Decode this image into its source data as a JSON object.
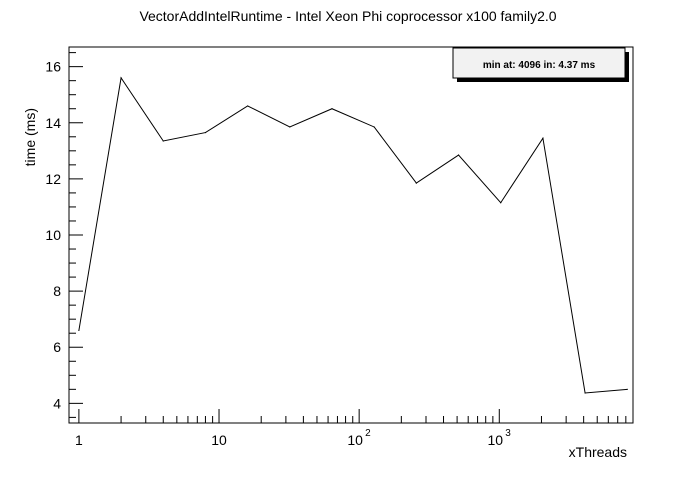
{
  "chart_data": {
    "type": "line",
    "title": "VectorAddIntelRuntime - Intel Xeon Phi coprocessor x100 family2.0",
    "xlabel": "xThreads",
    "ylabel": "time (ms)",
    "x_scale": "log10",
    "xlim": [
      0.85,
      9000
    ],
    "ylim": [
      3.3,
      16.7
    ],
    "x_major_ticks": [
      1,
      10,
      100,
      1000
    ],
    "x_tick_labels": [
      {
        "base": "1",
        "exp": ""
      },
      {
        "base": "10",
        "exp": ""
      },
      {
        "base": "10",
        "exp": "2"
      },
      {
        "base": "10",
        "exp": "3"
      }
    ],
    "y_major_ticks": [
      4,
      6,
      8,
      10,
      12,
      14,
      16
    ],
    "y_tick_labels": [
      "4",
      "6",
      "8",
      "10",
      "12",
      "14",
      "16"
    ],
    "grid": false,
    "legend": "none",
    "stats_box": {
      "text": "min at: 4096 in: 4.37 ms",
      "placement": "top-right"
    },
    "series": [
      {
        "x": [
          1,
          2,
          4,
          8,
          16,
          32,
          64,
          128,
          256,
          512,
          1024,
          2048,
          4096,
          8192
        ],
        "values": [
          6.6,
          15.6,
          13.35,
          13.65,
          14.6,
          13.85,
          14.5,
          13.85,
          11.85,
          12.85,
          11.15,
          13.45,
          4.37,
          4.5
        ]
      }
    ],
    "colors": {
      "line": "#000000",
      "frame": "#000000",
      "stats_fill": "#f2f2f2",
      "stats_shadow": "#000000"
    }
  }
}
